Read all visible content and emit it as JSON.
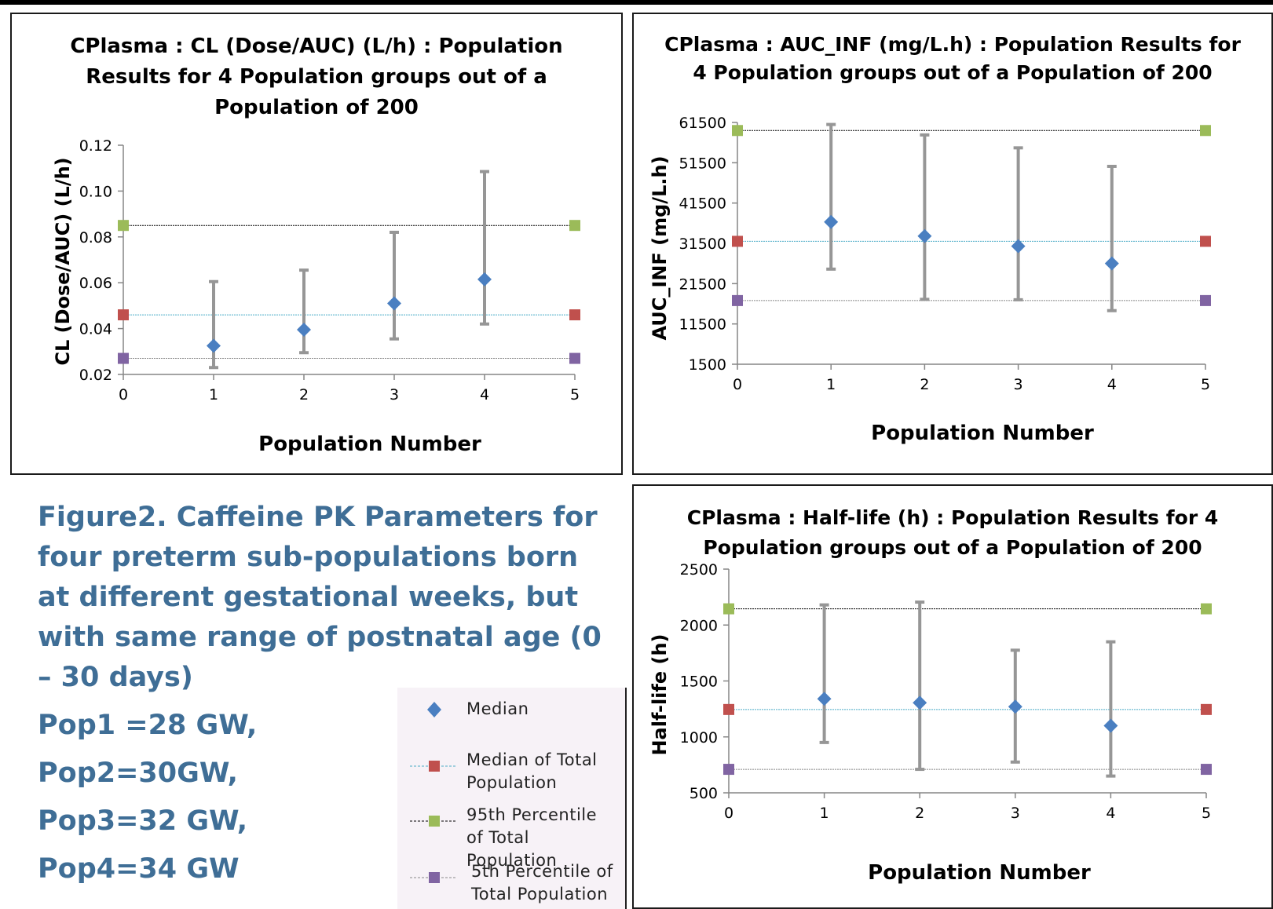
{
  "caption": {
    "text": "Figure2. Caffeine PK Parameters for four preterm sub-populations born at different gestational weeks, but with same range of postnatal age (0 – 30 days)",
    "pops": [
      "Pop1 =28 GW,",
      "Pop2=30GW,",
      "Pop3=32 GW,",
      "Pop4=34 GW"
    ]
  },
  "legend": {
    "items": [
      {
        "label": "Median",
        "color": "#4a7fc1",
        "marker": "diamond"
      },
      {
        "label": "Median of Total Population",
        "color": "#c0504d",
        "marker": "square",
        "line": "#4bacc6"
      },
      {
        "label": "95th Percentile of Total Population",
        "color": "#9bbb59",
        "marker": "square",
        "line": "#000000"
      },
      {
        "label": "5th Percentile of Total Population",
        "color": "#8064a2",
        "marker": "square",
        "line": "#888888"
      }
    ]
  },
  "colors": {
    "median": "#4a7fc1",
    "median_total": "#c0504d",
    "p95": "#9bbb59",
    "p5": "#8064a2",
    "errorbar": "#969696",
    "caption": "#3f6e96"
  },
  "chart_data": [
    {
      "id": "cl",
      "type": "scatter",
      "title": "CPlasma : CL (Dose/AUC) (L/h) : Population Results for 4 Population groups out of a Population of 200",
      "title_lines": [
        "CPlasma : CL (Dose/AUC) (L/h) : Population",
        "Results for 4 Population groups out of a",
        "Population of 200"
      ],
      "xlabel": "Population Number",
      "ylabel": "CL (Dose/AUC) (L/h)",
      "xlim": [
        0,
        5
      ],
      "ylim": [
        0.02,
        0.12
      ],
      "xticks": [
        "0",
        "1",
        "2",
        "3",
        "4",
        "5"
      ],
      "yticks": [
        "0.02",
        "0.04",
        "0.06",
        "0.08",
        "0.10",
        "0.12"
      ],
      "median": {
        "x": [
          1,
          2,
          3,
          4
        ],
        "y": [
          0.0325,
          0.0395,
          0.051,
          0.0615
        ],
        "low": [
          0.023,
          0.0295,
          0.0355,
          0.042
        ],
        "high": [
          0.0605,
          0.0655,
          0.082,
          0.1085
        ]
      },
      "median_total": 0.046,
      "p95": 0.085,
      "p5": 0.027
    },
    {
      "id": "auc",
      "type": "scatter",
      "title": "CPlasma : AUC_INF (mg/L.h) : Population Results for 4 Population groups out of a Population of 200",
      "title_lines": [
        "CPlasma : AUC_INF (mg/L.h) : Population Results for",
        "4 Population groups out of a Population of 200"
      ],
      "xlabel": "Population Number",
      "ylabel": "AUC_INF (mg/L.h)",
      "xlim": [
        0,
        5
      ],
      "ylim": [
        1500,
        61500
      ],
      "xticks": [
        "0",
        "1",
        "2",
        "3",
        "4",
        "5"
      ],
      "yticks": [
        "1500",
        "11500",
        "21500",
        "31500",
        "41500",
        "51500",
        "61500"
      ],
      "median": {
        "x": [
          1,
          2,
          3,
          4
        ],
        "y": [
          36800,
          33300,
          30800,
          26500
        ],
        "low": [
          25100,
          17600,
          17500,
          14800
        ],
        "high": [
          61000,
          58400,
          55200,
          50600
        ]
      },
      "median_total": 32000,
      "p95": 59500,
      "p5": 17300
    },
    {
      "id": "hl",
      "type": "scatter",
      "title": "CPlasma : Half-life (h) : Population Results for 4 Population groups out of a Population of 200",
      "title_lines": [
        "CPlasma : Half-life (h) : Population Results for 4",
        "Population groups out of a Population of 200"
      ],
      "xlabel": "Population Number",
      "ylabel": "Half-life (h)",
      "xlim": [
        0,
        5
      ],
      "ylim": [
        500,
        2500
      ],
      "xticks": [
        "0",
        "1",
        "2",
        "3",
        "4",
        "5"
      ],
      "yticks": [
        "500",
        "1000",
        "1500",
        "2000",
        "2500"
      ],
      "median": {
        "x": [
          1,
          2,
          3,
          4
        ],
        "y": [
          1340,
          1305,
          1270,
          1100
        ],
        "low": [
          950,
          710,
          775,
          650
        ],
        "high": [
          2180,
          2205,
          1775,
          1850
        ]
      },
      "median_total": 1245,
      "p95": 2145,
      "p5": 710
    }
  ]
}
